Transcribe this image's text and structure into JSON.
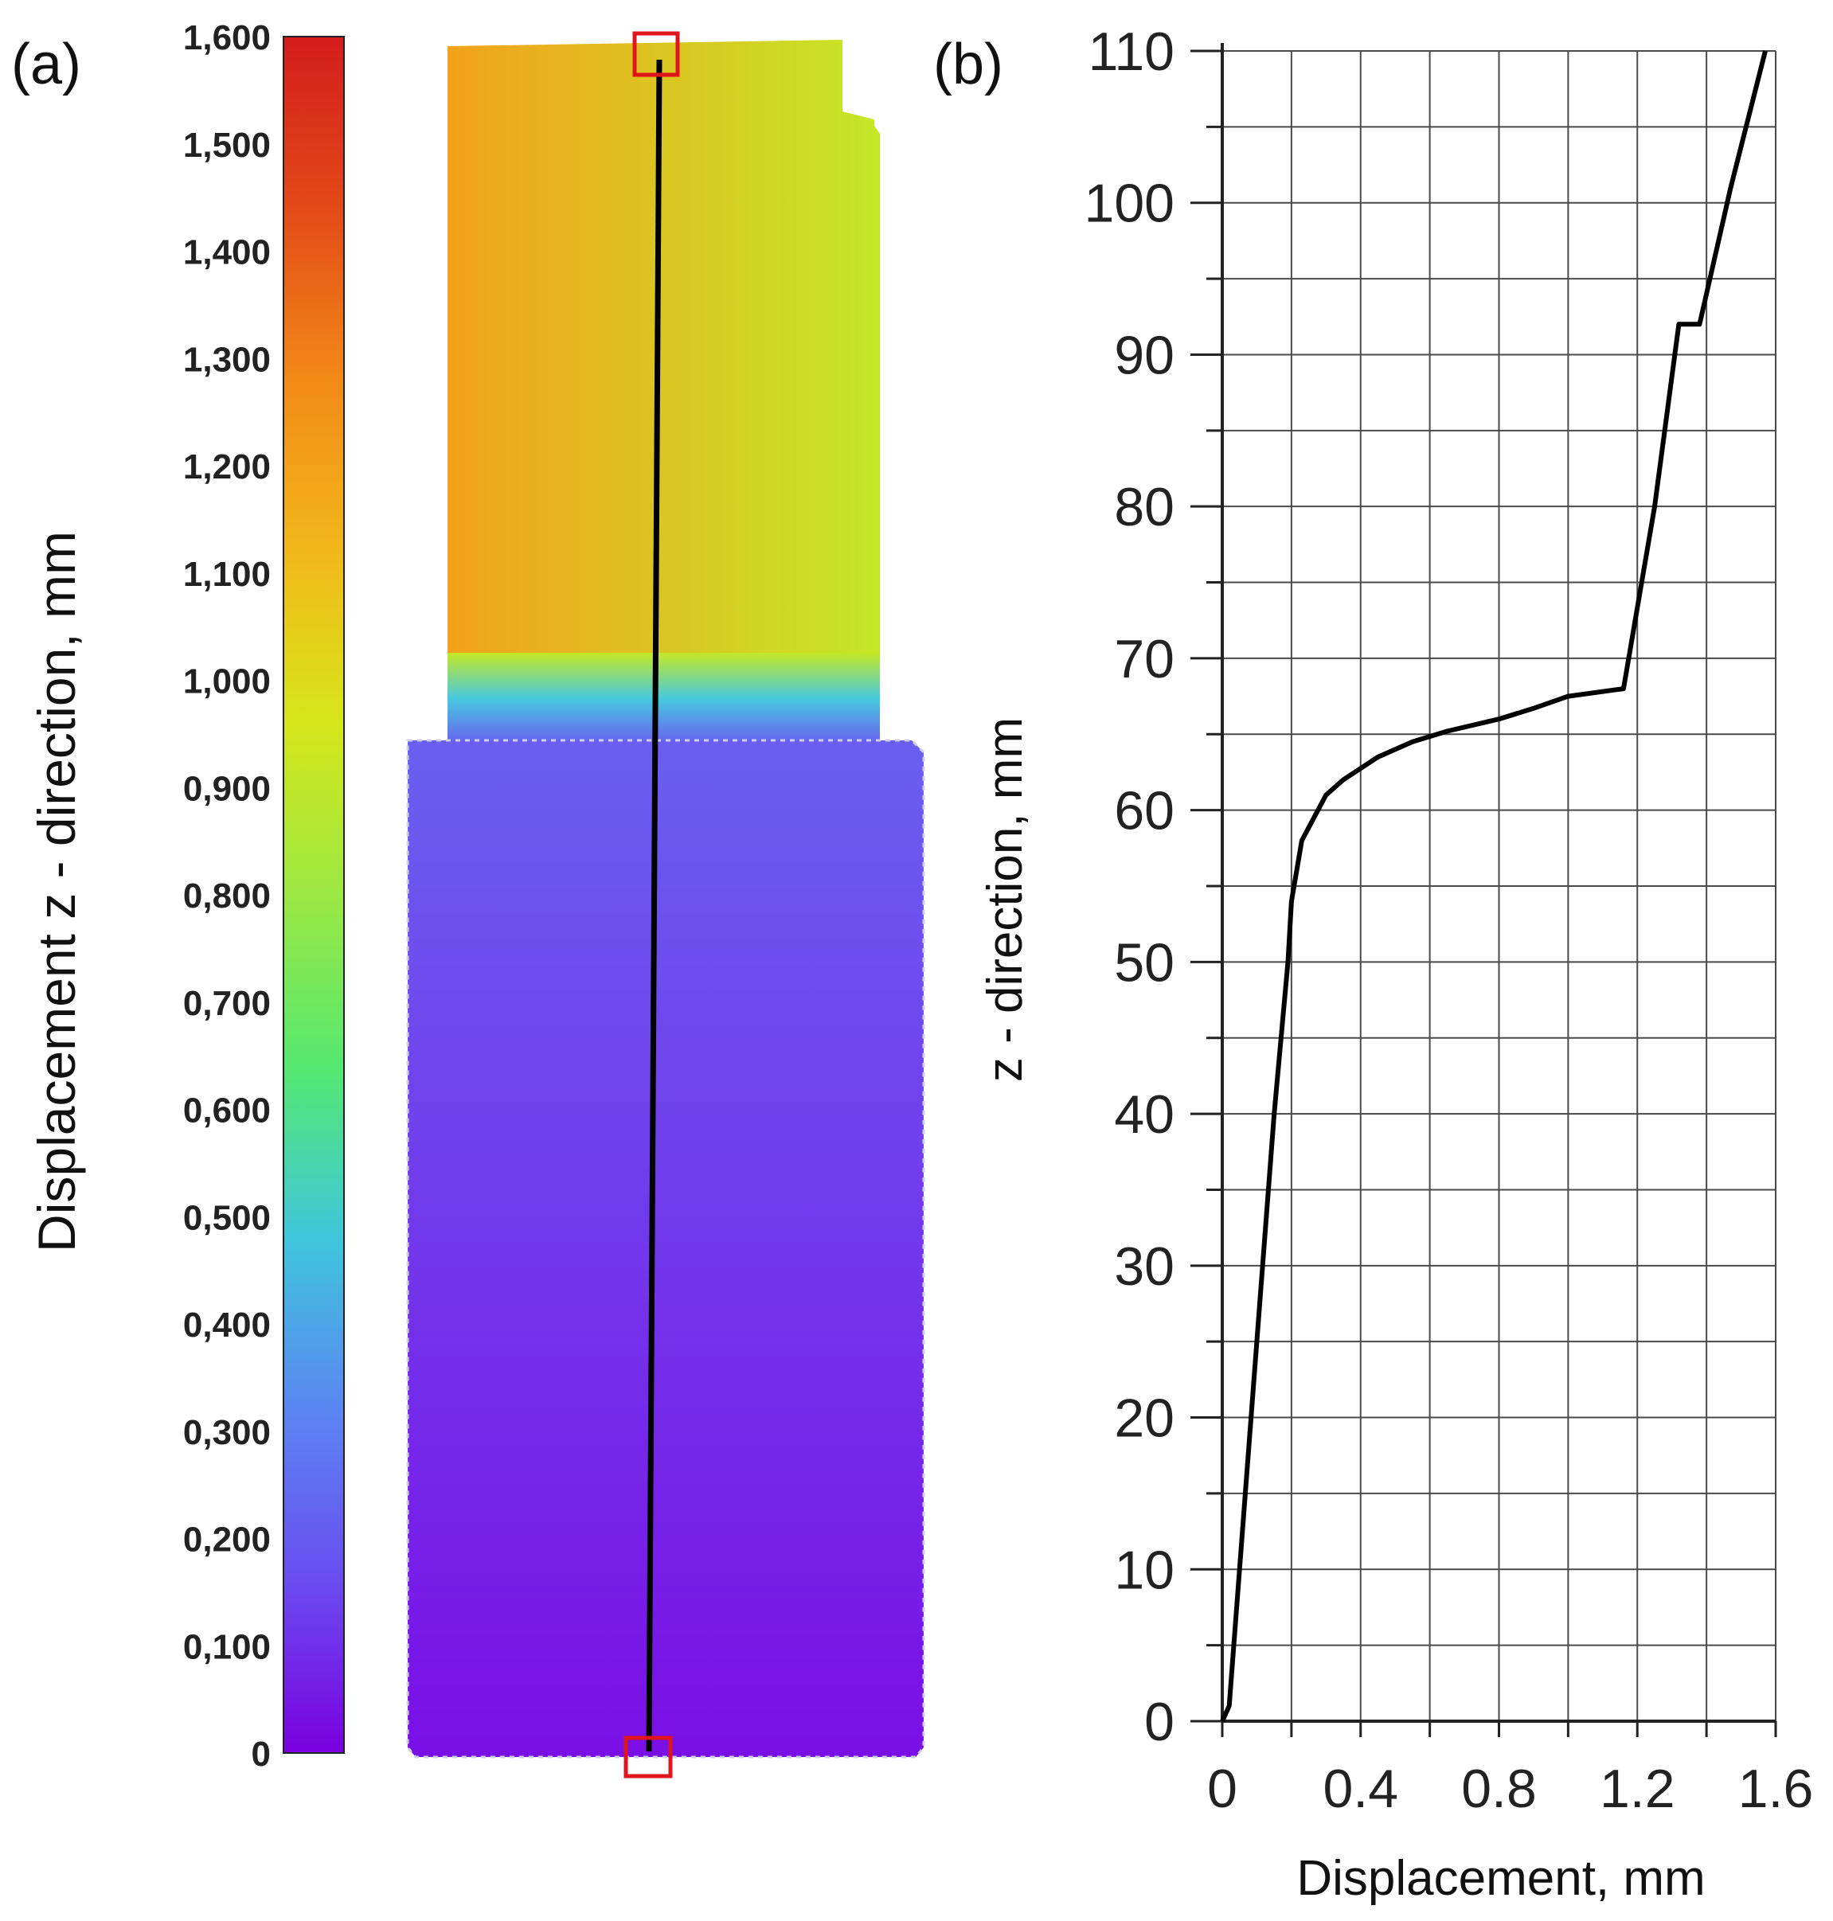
{
  "panels": {
    "a_label": "(a)",
    "b_label": "(b)"
  },
  "colorbar": {
    "label": "Displacement z - direction, mm",
    "ticks": [
      "1,600",
      "1,500",
      "1,400",
      "1,300",
      "1,200",
      "1,100",
      "1,000",
      "0,900",
      "0,800",
      "0,700",
      "0,600",
      "0,500",
      "0,400",
      "0,300",
      "0,200",
      "0,100",
      "0"
    ],
    "tick_values": [
      1.6,
      1.5,
      1.4,
      1.3,
      1.2,
      1.1,
      1.0,
      0.9,
      0.8,
      0.7,
      0.6,
      0.5,
      0.4,
      0.3,
      0.2,
      0.1,
      0
    ],
    "range": [
      0,
      1.6
    ],
    "colors": [
      "#7a00e0",
      "#6a4cf0",
      "#5b86f2",
      "#3fc6dc",
      "#56e870",
      "#9be843",
      "#d6e61a",
      "#f2b81a",
      "#f28a18",
      "#e34a18",
      "#d41c1c"
    ]
  },
  "specimen": {
    "field_colors": {
      "top_left": "#f2a21c",
      "top_right": "#c4e826",
      "transition": "#47c9df",
      "bottom_top": "#6a5ff0",
      "bottom_bottom": "#7a0fe6"
    },
    "line_color": "#000000",
    "marker_color": "#e0141c"
  },
  "chart_data": {
    "type": "line",
    "title": "",
    "xlabel": "Displacement, mm",
    "ylabel": "z - direction, mm",
    "xlim": [
      0,
      1.6
    ],
    "ylim": [
      0,
      110
    ],
    "x_ticks": [
      "0",
      "0.4",
      "0.8",
      "1.2",
      "1.6"
    ],
    "x_tick_values": [
      0,
      0.4,
      0.8,
      1.2,
      1.6
    ],
    "y_ticks": [
      "0",
      "10",
      "20",
      "30",
      "40",
      "50",
      "60",
      "70",
      "80",
      "90",
      "100",
      "110"
    ],
    "y_tick_values": [
      0,
      10,
      20,
      30,
      40,
      50,
      60,
      70,
      80,
      90,
      100,
      110
    ],
    "x_grid_step": 0.2,
    "y_grid_step": 5,
    "grid": true,
    "series": [
      {
        "x": [
          0,
          0.02,
          0.05,
          0.1,
          0.15,
          0.19,
          0.2,
          0.23,
          0.3,
          0.35,
          0.45,
          0.55,
          0.65,
          0.8,
          0.9,
          1.0,
          1.16,
          1.25,
          1.32,
          1.38,
          1.47,
          1.57
        ],
        "y": [
          0,
          1,
          10,
          25,
          40,
          50,
          54,
          58,
          61,
          62,
          63.5,
          64.5,
          65.2,
          66,
          66.7,
          67.5,
          68,
          80,
          92,
          92,
          101,
          110
        ],
        "color": "#000000"
      }
    ]
  }
}
